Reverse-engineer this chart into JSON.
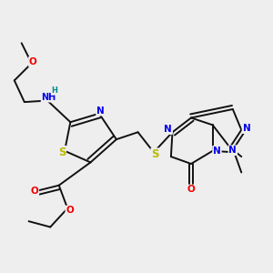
{
  "bg_color": "#eeeeee",
  "bond_color": "#111111",
  "bond_width": 1.4,
  "dbo": 0.015,
  "atom_colors": {
    "N": "#0000ee",
    "O": "#ee0000",
    "S": "#bbbb00",
    "H": "#008888",
    "C": "#111111"
  },
  "font_size": 7.5
}
